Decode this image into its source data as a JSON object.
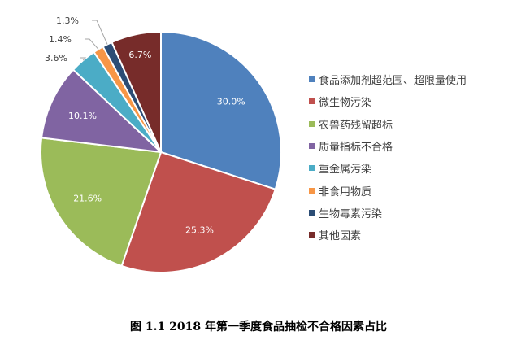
{
  "chart_data": {
    "type": "pie",
    "title": "",
    "categories": [
      "食品添加剂超范围、超限量使用",
      "微生物污染",
      "农兽药残留超标",
      "质量指标不合格",
      "重金属污染",
      "非食用物质",
      "生物毒素污染",
      "其他因素"
    ],
    "values": [
      30.0,
      25.3,
      21.6,
      10.1,
      3.6,
      1.4,
      1.3,
      6.7
    ],
    "data_labels": [
      "30.0%",
      "25.3%",
      "21.6%",
      "10.1%",
      "3.6%",
      "1.4%",
      "1.3%",
      "6.7%"
    ],
    "colors": [
      "#4F81BD",
      "#C0504D",
      "#9BBB59",
      "#8064A2",
      "#4BACC6",
      "#F79646",
      "#2C4D75",
      "#772C2A"
    ],
    "legend_position": "right",
    "start": "top-clockwise"
  },
  "caption": "图 1.1 2018 年第一季度食品抽检不合格因素占比"
}
